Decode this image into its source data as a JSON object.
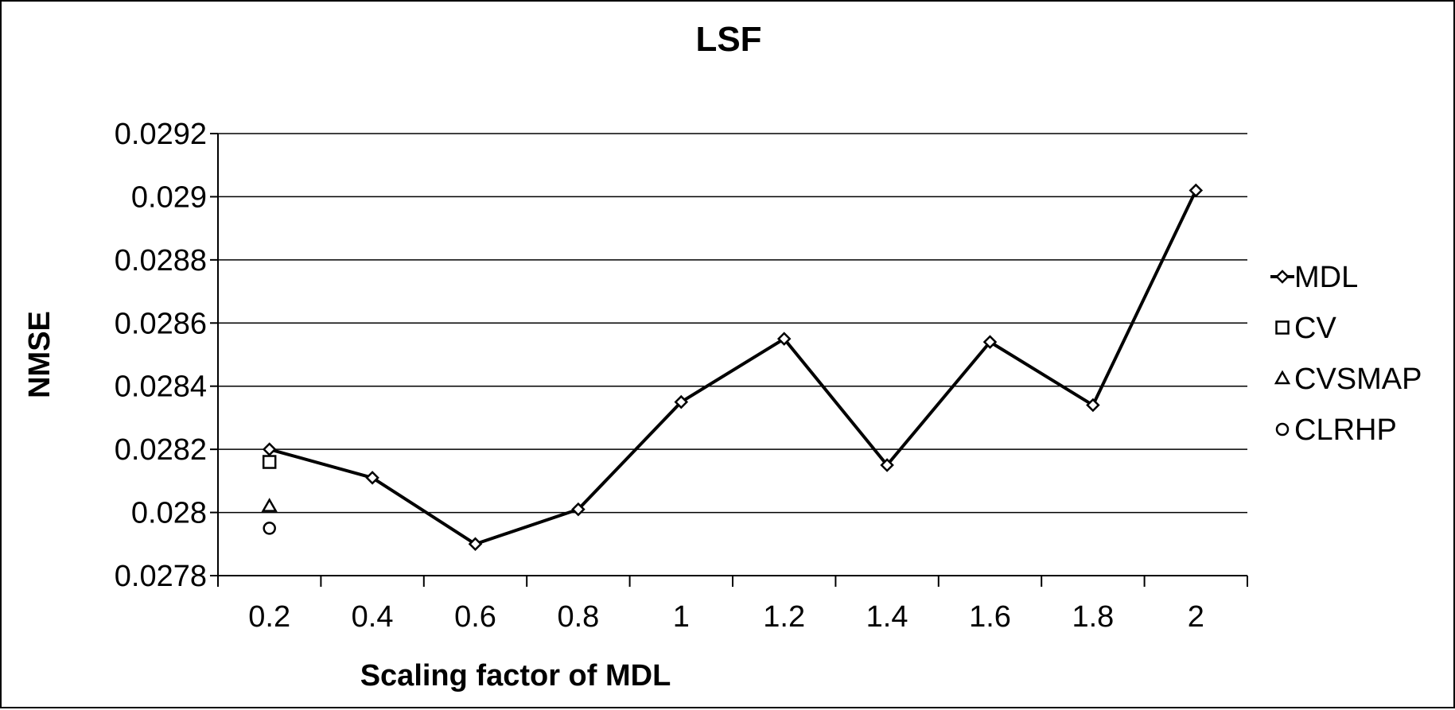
{
  "chart_data": {
    "type": "line",
    "title": "LSF",
    "xlabel": "Scaling factor of MDL",
    "ylabel": "NMSE",
    "categories": [
      "0.2",
      "0.4",
      "0.6",
      "0.8",
      "1",
      "1.2",
      "1.4",
      "1.6",
      "1.8",
      "2"
    ],
    "ylim": [
      0.0278,
      0.0292
    ],
    "y_ticks": [
      "0.0278",
      "0.028",
      "0.0282",
      "0.0284",
      "0.0286",
      "0.0288",
      "0.029",
      "0.0292"
    ],
    "grid": "horizontal",
    "legend_position": "right",
    "series": [
      {
        "name": "MDL",
        "kind": "line",
        "marker": "diamond",
        "values": [
          0.0282,
          0.02811,
          0.0279,
          0.02801,
          0.02835,
          0.02855,
          0.02815,
          0.02854,
          0.02834,
          0.02902
        ]
      },
      {
        "name": "CV",
        "kind": "point",
        "marker": "square",
        "values": [
          0.02816,
          null,
          null,
          null,
          null,
          null,
          null,
          null,
          null,
          null
        ]
      },
      {
        "name": "CVSMAP",
        "kind": "point",
        "marker": "triangle",
        "values": [
          0.02802,
          null,
          null,
          null,
          null,
          null,
          null,
          null,
          null,
          null
        ]
      },
      {
        "name": "CLRHP",
        "kind": "point",
        "marker": "circle",
        "values": [
          0.02795,
          null,
          null,
          null,
          null,
          null,
          null,
          null,
          null,
          null
        ]
      }
    ]
  }
}
